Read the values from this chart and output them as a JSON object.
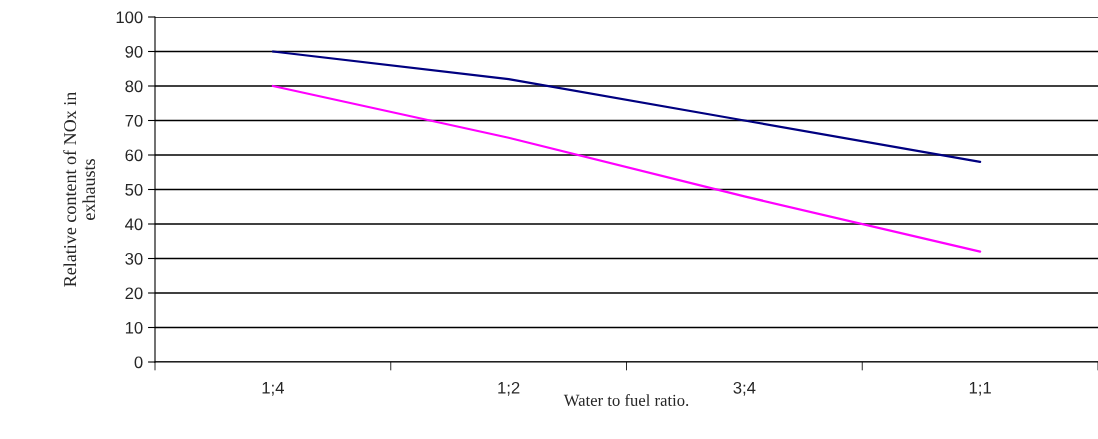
{
  "chart_data": {
    "type": "line",
    "xlabel": "Water to fuel ratio.",
    "ylabel": "Relative content of NOx in\nexhausts",
    "categories": [
      "1;4",
      "1;2",
      "3;4",
      "1;1"
    ],
    "series": [
      {
        "color": "#000080",
        "values": [
          90,
          82,
          70,
          58
        ]
      },
      {
        "color": "#ff00ff",
        "values": [
          80,
          65,
          48,
          32
        ]
      }
    ],
    "ylim": [
      0,
      100
    ],
    "yticks": [
      0,
      10,
      20,
      30,
      40,
      50,
      60,
      70,
      80,
      90,
      100
    ],
    "grid": "y",
    "marker": "none",
    "line_style": "solid"
  }
}
